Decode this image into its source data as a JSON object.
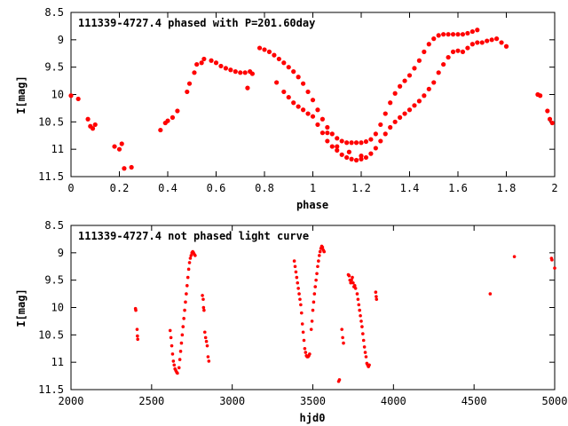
{
  "chart_data": [
    {
      "type": "scatter",
      "title": "111339-4727.4 phased with P=201.60day",
      "xlabel": "phase",
      "ylabel": "I[mag]",
      "xlim": [
        0,
        2
      ],
      "ylim": [
        8.5,
        11.5
      ],
      "y_inverted": true,
      "xticks": [
        0,
        0.2,
        0.4,
        0.6,
        0.8,
        1,
        1.2,
        1.4,
        1.6,
        1.8,
        2
      ],
      "xtick_labels": [
        "0",
        "0.2",
        "0.4",
        "0.6",
        "0.8",
        "1",
        "1.2",
        "1.4",
        "1.6",
        "1.8",
        "2"
      ],
      "yticks": [
        8.5,
        9,
        9.5,
        10,
        10.5,
        11,
        11.5
      ],
      "ytick_labels": [
        "8.5",
        "9",
        "9.5",
        "10",
        "10.5",
        "11",
        "11.5"
      ],
      "marker": "filled-circle",
      "color": "#ff0000",
      "grid": false,
      "series": [
        {
          "points": [
            [
              0.0,
              10.02
            ],
            [
              0.03,
              10.08
            ],
            [
              0.07,
              10.45
            ],
            [
              0.08,
              10.58
            ],
            [
              0.09,
              10.62
            ],
            [
              0.1,
              10.55
            ],
            [
              0.18,
              10.95
            ],
            [
              0.2,
              11.0
            ],
            [
              0.21,
              10.9
            ],
            [
              0.22,
              11.35
            ],
            [
              0.25,
              11.33
            ],
            [
              0.37,
              10.65
            ],
            [
              0.39,
              10.52
            ],
            [
              0.4,
              10.48
            ],
            [
              0.42,
              10.42
            ],
            [
              0.44,
              10.3
            ],
            [
              0.48,
              9.95
            ],
            [
              0.49,
              9.8
            ],
            [
              0.51,
              9.6
            ],
            [
              0.52,
              9.45
            ],
            [
              0.54,
              9.42
            ],
            [
              0.55,
              9.35
            ],
            [
              0.58,
              9.38
            ],
            [
              0.6,
              9.42
            ],
            [
              0.62,
              9.48
            ],
            [
              0.64,
              9.52
            ],
            [
              0.66,
              9.55
            ],
            [
              0.68,
              9.58
            ],
            [
              0.7,
              9.6
            ],
            [
              0.72,
              9.6
            ],
            [
              0.74,
              9.58
            ],
            [
              0.75,
              9.62
            ],
            [
              0.73,
              9.88
            ],
            [
              0.78,
              9.15
            ],
            [
              0.8,
              9.18
            ],
            [
              0.82,
              9.22
            ],
            [
              0.84,
              9.28
            ],
            [
              0.86,
              9.35
            ],
            [
              0.88,
              9.42
            ],
            [
              0.9,
              9.5
            ],
            [
              0.92,
              9.58
            ],
            [
              0.94,
              9.68
            ],
            [
              0.96,
              9.8
            ],
            [
              0.98,
              9.95
            ],
            [
              1.0,
              10.1
            ],
            [
              1.02,
              10.28
            ],
            [
              1.04,
              10.45
            ],
            [
              1.06,
              10.6
            ],
            [
              1.08,
              10.72
            ],
            [
              1.1,
              10.8
            ],
            [
              1.12,
              10.85
            ],
            [
              1.14,
              10.88
            ],
            [
              1.16,
              10.88
            ],
            [
              1.18,
              10.88
            ],
            [
              1.2,
              10.88
            ],
            [
              1.22,
              10.86
            ],
            [
              1.24,
              10.82
            ],
            [
              1.26,
              10.72
            ],
            [
              1.28,
              10.55
            ],
            [
              1.3,
              10.35
            ],
            [
              1.32,
              10.15
            ],
            [
              1.34,
              9.98
            ],
            [
              1.36,
              9.85
            ],
            [
              1.38,
              9.75
            ],
            [
              1.4,
              9.65
            ],
            [
              1.42,
              9.52
            ],
            [
              1.44,
              9.38
            ],
            [
              1.46,
              9.22
            ],
            [
              1.48,
              9.08
            ],
            [
              1.5,
              8.98
            ],
            [
              1.52,
              8.92
            ],
            [
              1.54,
              8.9
            ],
            [
              1.56,
              8.9
            ],
            [
              1.58,
              8.9
            ],
            [
              1.6,
              8.9
            ],
            [
              1.62,
              8.9
            ],
            [
              1.64,
              8.88
            ],
            [
              1.66,
              8.85
            ],
            [
              1.68,
              8.82
            ],
            [
              0.85,
              9.78
            ],
            [
              0.88,
              9.95
            ],
            [
              0.9,
              10.05
            ],
            [
              0.92,
              10.15
            ],
            [
              0.94,
              10.22
            ],
            [
              0.96,
              10.28
            ],
            [
              0.98,
              10.35
            ],
            [
              1.0,
              10.4
            ],
            [
              1.02,
              10.55
            ],
            [
              1.04,
              10.7
            ],
            [
              1.06,
              10.85
            ],
            [
              1.08,
              10.95
            ],
            [
              1.1,
              11.02
            ],
            [
              1.12,
              11.1
            ],
            [
              1.14,
              11.15
            ],
            [
              1.16,
              11.18
            ],
            [
              1.18,
              11.2
            ],
            [
              1.2,
              11.18
            ],
            [
              1.22,
              11.15
            ],
            [
              1.24,
              11.08
            ],
            [
              1.26,
              10.98
            ],
            [
              1.28,
              10.85
            ],
            [
              1.3,
              10.72
            ],
            [
              1.32,
              10.6
            ],
            [
              1.34,
              10.5
            ],
            [
              1.36,
              10.42
            ],
            [
              1.38,
              10.35
            ],
            [
              1.4,
              10.28
            ],
            [
              1.42,
              10.2
            ],
            [
              1.44,
              10.12
            ],
            [
              1.46,
              10.02
            ],
            [
              1.48,
              9.9
            ],
            [
              1.5,
              9.78
            ],
            [
              1.52,
              9.6
            ],
            [
              1.54,
              9.45
            ],
            [
              1.56,
              9.32
            ],
            [
              1.58,
              9.22
            ],
            [
              1.6,
              9.2
            ],
            [
              1.62,
              9.22
            ],
            [
              1.64,
              9.15
            ],
            [
              1.66,
              9.08
            ],
            [
              1.68,
              9.05
            ],
            [
              1.7,
              9.05
            ],
            [
              1.72,
              9.02
            ],
            [
              1.74,
              9.0
            ],
            [
              1.76,
              8.98
            ],
            [
              1.78,
              9.05
            ],
            [
              1.8,
              9.12
            ],
            [
              1.06,
              10.7
            ],
            [
              1.1,
              10.95
            ],
            [
              1.15,
              11.05
            ],
            [
              1.2,
              11.12
            ],
            [
              1.93,
              10.0
            ],
            [
              1.94,
              10.02
            ],
            [
              1.97,
              10.3
            ],
            [
              1.98,
              10.45
            ],
            [
              1.99,
              10.52
            ]
          ]
        }
      ]
    },
    {
      "type": "scatter",
      "title": "111339-4727.4 not phased light curve",
      "xlabel": "hjd0",
      "ylabel": "I[mag]",
      "xlim": [
        2000,
        5000
      ],
      "ylim": [
        8.5,
        11.5
      ],
      "y_inverted": true,
      "xticks": [
        2000,
        2500,
        3000,
        3500,
        4000,
        4500,
        5000
      ],
      "xtick_labels": [
        "2000",
        "2500",
        "3000",
        "3500",
        "4000",
        "4500",
        "5000"
      ],
      "yticks": [
        8.5,
        9,
        9.5,
        10,
        10.5,
        11,
        11.5
      ],
      "ytick_labels": [
        "8.5",
        "9",
        "9.5",
        "10",
        "10.5",
        "11",
        "11.5"
      ],
      "marker": "filled-circle",
      "color": "#ff0000",
      "grid": false,
      "series": [
        {
          "points": [
            [
              2400,
              10.02
            ],
            [
              2402,
              10.05
            ],
            [
              2410,
              10.4
            ],
            [
              2412,
              10.52
            ],
            [
              2414,
              10.58
            ],
            [
              2615,
              10.42
            ],
            [
              2620,
              10.55
            ],
            [
              2625,
              10.7
            ],
            [
              2630,
              10.85
            ],
            [
              2635,
              10.98
            ],
            [
              2640,
              11.05
            ],
            [
              2645,
              11.12
            ],
            [
              2650,
              11.15
            ],
            [
              2655,
              11.18
            ],
            [
              2660,
              11.2
            ],
            [
              2670,
              11.1
            ],
            [
              2675,
              10.95
            ],
            [
              2680,
              10.8
            ],
            [
              2685,
              10.65
            ],
            [
              2690,
              10.5
            ],
            [
              2695,
              10.35
            ],
            [
              2700,
              10.2
            ],
            [
              2705,
              10.05
            ],
            [
              2710,
              9.9
            ],
            [
              2715,
              9.75
            ],
            [
              2720,
              9.6
            ],
            [
              2725,
              9.45
            ],
            [
              2730,
              9.3
            ],
            [
              2735,
              9.18
            ],
            [
              2740,
              9.1
            ],
            [
              2745,
              9.05
            ],
            [
              2750,
              9.0
            ],
            [
              2755,
              8.98
            ],
            [
              2760,
              9.0
            ],
            [
              2765,
              9.03
            ],
            [
              2770,
              9.05
            ],
            [
              2815,
              9.78
            ],
            [
              2820,
              9.85
            ],
            [
              2822,
              10.0
            ],
            [
              2825,
              10.05
            ],
            [
              2830,
              10.45
            ],
            [
              2835,
              10.55
            ],
            [
              2840,
              10.62
            ],
            [
              2845,
              10.7
            ],
            [
              2850,
              10.9
            ],
            [
              2855,
              10.98
            ],
            [
              3385,
              9.15
            ],
            [
              3390,
              9.25
            ],
            [
              3395,
              9.35
            ],
            [
              3400,
              9.45
            ],
            [
              3405,
              9.55
            ],
            [
              3410,
              9.65
            ],
            [
              3415,
              9.75
            ],
            [
              3420,
              9.85
            ],
            [
              3425,
              9.95
            ],
            [
              3430,
              10.1
            ],
            [
              3435,
              10.3
            ],
            [
              3440,
              10.45
            ],
            [
              3445,
              10.6
            ],
            [
              3450,
              10.75
            ],
            [
              3455,
              10.82
            ],
            [
              3460,
              10.88
            ],
            [
              3465,
              10.9
            ],
            [
              3470,
              10.9
            ],
            [
              3475,
              10.88
            ],
            [
              3480,
              10.85
            ],
            [
              3490,
              10.4
            ],
            [
              3495,
              10.25
            ],
            [
              3500,
              10.05
            ],
            [
              3505,
              9.9
            ],
            [
              3510,
              9.75
            ],
            [
              3515,
              9.62
            ],
            [
              3520,
              9.5
            ],
            [
              3525,
              9.38
            ],
            [
              3530,
              9.25
            ],
            [
              3535,
              9.15
            ],
            [
              3540,
              9.05
            ],
            [
              3545,
              8.98
            ],
            [
              3550,
              8.92
            ],
            [
              3555,
              8.88
            ],
            [
              3560,
              8.9
            ],
            [
              3565,
              8.95
            ],
            [
              3570,
              8.98
            ],
            [
              3660,
              11.35
            ],
            [
              3665,
              11.32
            ],
            [
              3680,
              10.4
            ],
            [
              3685,
              10.55
            ],
            [
              3690,
              10.65
            ],
            [
              3720,
              9.4
            ],
            [
              3725,
              9.42
            ],
            [
              3730,
              9.5
            ],
            [
              3735,
              9.55
            ],
            [
              3740,
              9.5
            ],
            [
              3745,
              9.45
            ],
            [
              3750,
              9.55
            ],
            [
              3755,
              9.62
            ],
            [
              3760,
              9.6
            ],
            [
              3765,
              9.65
            ],
            [
              3775,
              9.75
            ],
            [
              3780,
              9.85
            ],
            [
              3785,
              9.95
            ],
            [
              3790,
              10.05
            ],
            [
              3795,
              10.15
            ],
            [
              3800,
              10.25
            ],
            [
              3805,
              10.35
            ],
            [
              3810,
              10.48
            ],
            [
              3815,
              10.6
            ],
            [
              3820,
              10.72
            ],
            [
              3825,
              10.82
            ],
            [
              3830,
              10.9
            ],
            [
              3835,
              11.02
            ],
            [
              3840,
              11.05
            ],
            [
              3845,
              11.08
            ],
            [
              3850,
              11.05
            ],
            [
              3890,
              9.72
            ],
            [
              3893,
              9.8
            ],
            [
              3895,
              9.85
            ],
            [
              4600,
              9.75
            ],
            [
              4750,
              9.07
            ],
            [
              4980,
              9.1
            ],
            [
              4983,
              9.13
            ],
            [
              5000,
              9.28
            ]
          ]
        }
      ]
    }
  ]
}
